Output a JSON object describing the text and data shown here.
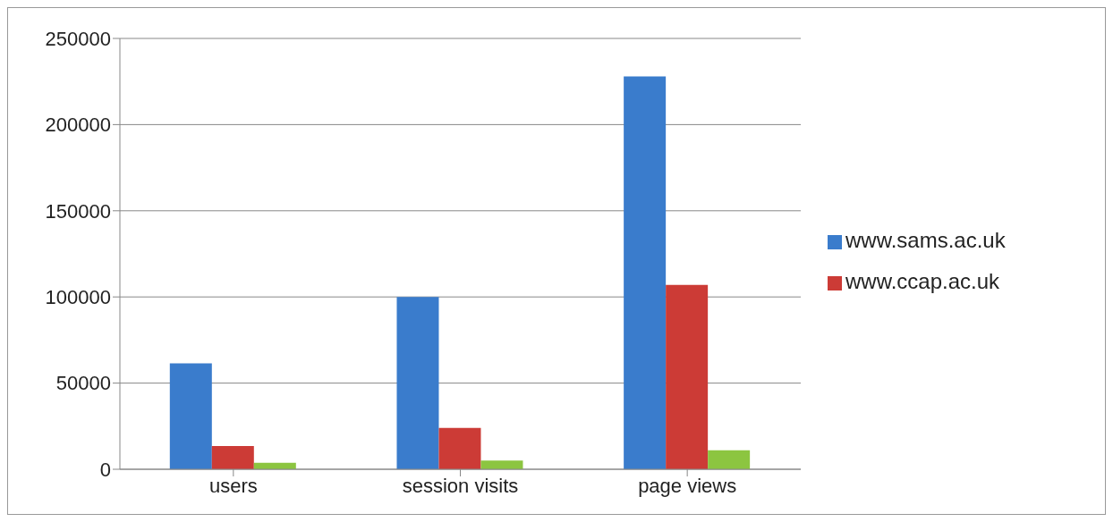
{
  "chart_data": {
    "type": "bar",
    "categories": [
      "users",
      "session visits",
      "page views"
    ],
    "series": [
      {
        "name": "www.sams.ac.uk",
        "color": "#3a7ccc",
        "values": [
          61500,
          100000,
          228000
        ]
      },
      {
        "name": "www.ccap.ac.uk",
        "color": "#cc3b36",
        "values": [
          13500,
          24000,
          107000
        ]
      },
      {
        "color": "#8cc540",
        "values": [
          3700,
          5000,
          11000
        ]
      }
    ],
    "ylim": [
      0,
      250000
    ],
    "yticks": [
      0,
      50000,
      100000,
      150000,
      200000,
      250000
    ],
    "grid": "y",
    "legend": "right"
  }
}
